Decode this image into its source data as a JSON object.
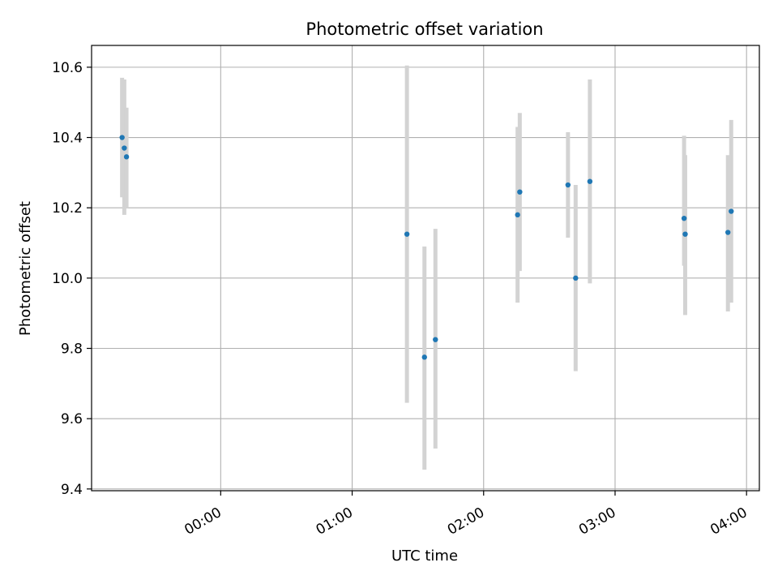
{
  "chart_data": {
    "type": "scatter",
    "title": "Photometric offset variation",
    "xlabel": "UTC time",
    "ylabel": "Photometric offset",
    "xlim": [
      "23:01:04",
      "04:05:51"
    ],
    "ylim": [
      9.395,
      10.662
    ],
    "grid": true,
    "colors": {
      "point": "#1f77b4",
      "errorbar": "#d3d3d3",
      "grid": "#b0b0b0"
    },
    "x_ticks": [
      "00:00",
      "01:00",
      "02:00",
      "03:00",
      "04:00"
    ],
    "y_ticks": [
      "9.4",
      "9.6",
      "9.8",
      "10.0",
      "10.2",
      "10.4",
      "10.6"
    ],
    "points": [
      {
        "x": "23:15:00",
        "y": 10.4,
        "err_low": 10.23,
        "err_high": 10.57
      },
      {
        "x": "23:16:00",
        "y": 10.37,
        "err_low": 10.18,
        "err_high": 10.565
      },
      {
        "x": "23:17:00",
        "y": 10.345,
        "err_low": 10.2,
        "err_high": 10.485
      },
      {
        "x": "01:25:00",
        "y": 10.125,
        "err_low": 9.645,
        "err_high": 10.605
      },
      {
        "x": "01:33:00",
        "y": 9.775,
        "err_low": 9.455,
        "err_high": 10.09
      },
      {
        "x": "01:38:00",
        "y": 9.825,
        "err_low": 9.515,
        "err_high": 10.14
      },
      {
        "x": "02:15:30",
        "y": 10.18,
        "err_low": 9.93,
        "err_high": 10.43
      },
      {
        "x": "02:16:30",
        "y": 10.245,
        "err_low": 10.02,
        "err_high": 10.47
      },
      {
        "x": "02:38:30",
        "y": 10.265,
        "err_low": 10.115,
        "err_high": 10.415
      },
      {
        "x": "02:42:00",
        "y": 10.0,
        "err_low": 9.735,
        "err_high": 10.265
      },
      {
        "x": "02:48:30",
        "y": 10.275,
        "err_low": 9.985,
        "err_high": 10.565
      },
      {
        "x": "03:31:30",
        "y": 10.17,
        "err_low": 10.035,
        "err_high": 10.405
      },
      {
        "x": "03:32:00",
        "y": 10.125,
        "err_low": 9.895,
        "err_high": 10.35
      },
      {
        "x": "03:51:30",
        "y": 10.13,
        "err_low": 9.905,
        "err_high": 10.35
      },
      {
        "x": "03:53:00",
        "y": 10.19,
        "err_low": 9.93,
        "err_high": 10.45
      }
    ]
  }
}
